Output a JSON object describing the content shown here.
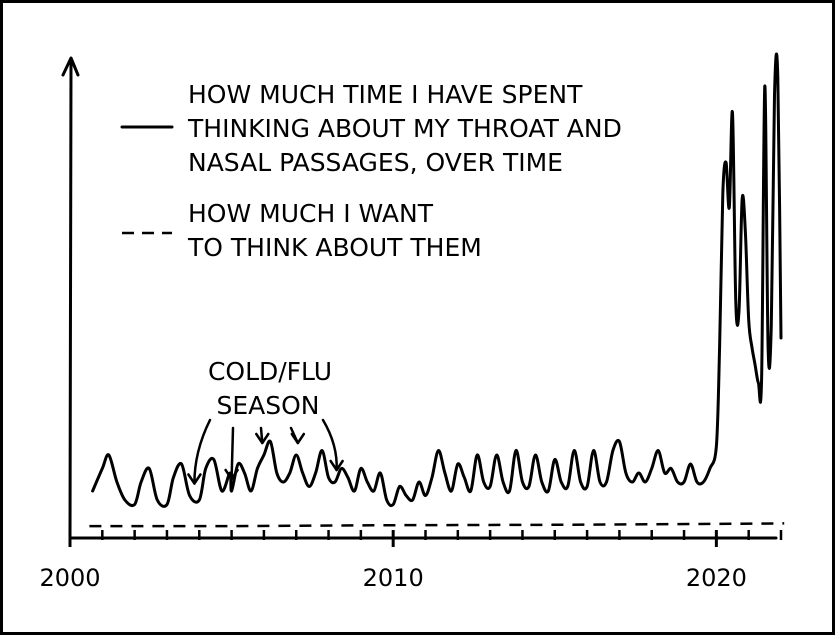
{
  "chart_data": {
    "type": "line",
    "title": "",
    "xlabel": "",
    "ylabel": "",
    "xlim": [
      2000,
      2022
    ],
    "ylim": [
      0,
      10
    ],
    "x_ticks": [
      "2000",
      "2010",
      "2020"
    ],
    "grid": false,
    "legend_position": "top-left",
    "series": [
      {
        "name": "HOW MUCH TIME I HAVE SPENT THINKING ABOUT MY THROAT AND NASAL PASSAGES, OVER TIME",
        "style": "solid",
        "color": "#000000",
        "legend_lines": [
          "HOW MUCH TIME I HAVE SPENT",
          "THINKING ABOUT MY THROAT AND",
          "NASAL PASSAGES, OVER TIME"
        ],
        "x": [
          2000.7,
          2001.0,
          2001.2,
          2001.45,
          2001.7,
          2002.0,
          2002.2,
          2002.45,
          2002.7,
          2003.0,
          2003.2,
          2003.45,
          2003.7,
          2004.0,
          2004.2,
          2004.45,
          2004.7,
          2005.0,
          2005.2,
          2004.95,
          2005.4,
          2005.6,
          2005.8,
          2006.0,
          2006.2,
          2006.4,
          2006.6,
          2006.8,
          2007.0,
          2007.2,
          2007.4,
          2007.6,
          2007.8,
          2008.0,
          2008.2,
          2008.4,
          2008.6,
          2008.8,
          2009.0,
          2009.2,
          2009.4,
          2009.6,
          2009.8,
          2010.0,
          2010.2,
          2010.4,
          2010.6,
          2010.8,
          2011.0,
          2011.2,
          2011.4,
          2011.6,
          2011.8,
          2012.0,
          2012.2,
          2012.4,
          2012.6,
          2012.8,
          2013.0,
          2013.2,
          2013.4,
          2013.6,
          2013.8,
          2014.0,
          2014.2,
          2014.4,
          2014.6,
          2014.8,
          2015.0,
          2015.2,
          2015.4,
          2015.6,
          2015.8,
          2016.0,
          2016.2,
          2016.4,
          2016.6,
          2016.8,
          2017.0,
          2017.2,
          2017.4,
          2017.6,
          2017.8,
          2018.0,
          2018.2,
          2018.4,
          2018.6,
          2018.8,
          2019.0,
          2019.2,
          2019.4,
          2019.6,
          2019.8,
          2020.0,
          2020.1,
          2020.2,
          2020.3,
          2020.4,
          2020.5,
          2020.6,
          2020.7,
          2020.8,
          2020.9,
          2021.0,
          2021.1,
          2021.2,
          2021.3,
          2021.4,
          2021.5,
          2021.6,
          2021.7,
          2021.8,
          2021.9,
          2022.0
        ],
        "y": [
          0.8,
          1.3,
          1.6,
          1.0,
          0.6,
          0.5,
          1.0,
          1.3,
          0.6,
          0.5,
          1.1,
          1.4,
          0.7,
          0.6,
          1.3,
          1.5,
          0.8,
          0.8,
          1.4,
          1.2,
          1.2,
          0.8,
          1.3,
          1.6,
          1.9,
          1.2,
          1.0,
          1.2,
          1.6,
          1.2,
          0.9,
          1.2,
          1.7,
          1.1,
          1.0,
          1.3,
          1.1,
          0.8,
          1.3,
          1.0,
          0.8,
          1.2,
          0.6,
          0.5,
          0.9,
          0.7,
          0.6,
          1.0,
          0.7,
          1.1,
          1.7,
          1.2,
          0.8,
          1.4,
          1.1,
          0.8,
          1.6,
          1.0,
          0.9,
          1.6,
          1.0,
          0.8,
          1.7,
          1.0,
          0.9,
          1.6,
          1.0,
          0.8,
          1.5,
          1.0,
          0.9,
          1.7,
          1.0,
          0.9,
          1.7,
          1.0,
          1.0,
          1.7,
          1.9,
          1.2,
          1.0,
          1.2,
          1.0,
          1.3,
          1.7,
          1.2,
          1.3,
          1.0,
          1.0,
          1.4,
          1.0,
          1.0,
          1.3,
          1.8,
          4.0,
          7.4,
          8.1,
          7.1,
          9.2,
          5.0,
          4.8,
          7.3,
          6.5,
          4.6,
          4.0,
          3.6,
          3.2,
          3.3,
          9.8,
          4.0,
          4.5,
          9.6,
          10.0,
          4.2
        ],
        "values_note": ""
      },
      {
        "name": "HOW MUCH I WANT TO THINK ABOUT THEM",
        "style": "dashed",
        "color": "#000000",
        "legend_lines": [
          "HOW MUCH I WANT",
          "TO THINK ABOUT THEM"
        ],
        "x": [
          2000.6,
          2005,
          2010,
          2015,
          2020,
          2022.1
        ],
        "y": [
          0.02,
          0.02,
          0.04,
          0.05,
          0.07,
          0.08
        ]
      }
    ],
    "annotations": [
      {
        "text_lines": [
          "COLD/FLU",
          "SEASON"
        ],
        "arrow_targets_x": [
          2003.85,
          2005.0,
          2005.95,
          2007.05,
          2008.25
        ]
      }
    ]
  }
}
